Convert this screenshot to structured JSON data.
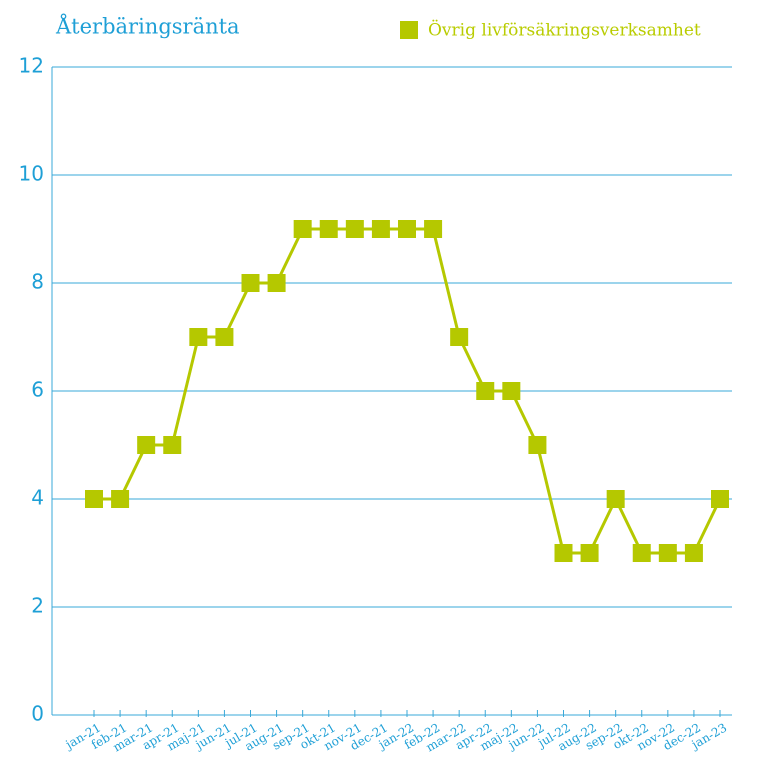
{
  "chart_data": {
    "type": "line",
    "title": "Återbäringsränta",
    "categories": [
      "jan-21",
      "feb-21",
      "mar-21",
      "apr-21",
      "maj-21",
      "jun-21",
      "jul-21",
      "aug-21",
      "sep-21",
      "okt-21",
      "nov-21",
      "dec-21",
      "jan-22",
      "feb-22",
      "mar-22",
      "apr-22",
      "maj-22",
      "jun-22",
      "jul-22",
      "aug-22",
      "sep-22",
      "okt-22",
      "nov-22",
      "dec-22",
      "jan-23"
    ],
    "series": [
      {
        "name": "Övrig livförsäkringsverksamhet",
        "color": "#b5c800",
        "values": [
          4,
          4,
          5,
          5,
          7,
          7,
          8,
          8,
          9,
          9,
          9,
          9,
          9,
          9,
          7,
          6,
          6,
          5,
          3,
          3,
          4,
          3,
          3,
          3,
          4
        ]
      }
    ],
    "ylim": [
      0,
      12
    ],
    "yticks": [
      0,
      2,
      4,
      6,
      8,
      10,
      12
    ],
    "grid": true,
    "legend": "top-right"
  }
}
